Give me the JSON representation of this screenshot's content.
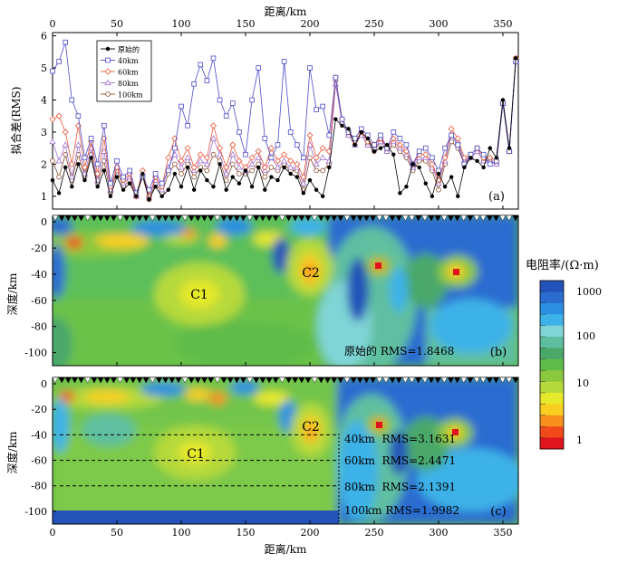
{
  "chart_data": [
    {
      "type": "line",
      "panel": "(a)",
      "xlabel": "距离/km",
      "ylabel": "拟合差(RMS)",
      "xlim": [
        0,
        362
      ],
      "ylim": [
        0.6,
        6.1
      ],
      "xticks": [
        0,
        50,
        100,
        150,
        200,
        250,
        300,
        350
      ],
      "yticks": [
        1,
        2,
        3,
        4,
        5,
        6
      ],
      "legend_position": "top-left",
      "x": [
        0,
        5,
        10,
        15,
        20,
        25,
        30,
        35,
        40,
        45,
        50,
        55,
        60,
        65,
        70,
        75,
        80,
        85,
        90,
        95,
        100,
        105,
        110,
        115,
        120,
        125,
        130,
        135,
        140,
        145,
        150,
        155,
        160,
        165,
        170,
        175,
        180,
        185,
        190,
        195,
        200,
        205,
        210,
        215,
        220,
        225,
        230,
        235,
        240,
        245,
        250,
        255,
        260,
        265,
        270,
        275,
        280,
        285,
        290,
        295,
        300,
        305,
        310,
        315,
        320,
        325,
        330,
        335,
        340,
        345,
        350,
        355,
        360
      ],
      "series": [
        {
          "name": "原始的",
          "color": "#000000",
          "marker": "filled-circle",
          "values": [
            1.5,
            1.1,
            1.9,
            1.3,
            2.0,
            1.5,
            2.2,
            1.3,
            1.8,
            1.0,
            1.6,
            1.2,
            1.4,
            1.0,
            1.7,
            0.9,
            1.3,
            1.0,
            1.2,
            1.7,
            1.3,
            1.9,
            1.2,
            1.8,
            1.5,
            1.3,
            2.0,
            1.2,
            1.6,
            1.4,
            1.8,
            1.3,
            1.9,
            1.2,
            1.6,
            1.5,
            1.9,
            1.7,
            1.6,
            1.1,
            1.5,
            1.2,
            1.0,
            1.9,
            3.4,
            3.2,
            3.1,
            2.6,
            3.0,
            2.8,
            2.4,
            2.5,
            2.6,
            2.3,
            1.1,
            1.3,
            2.0,
            1.9,
            1.4,
            1.0,
            1.7,
            1.3,
            1.6,
            1.0,
            1.9,
            2.2,
            2.1,
            1.9,
            2.5,
            2.2,
            4.0,
            2.5,
            5.3
          ]
        },
        {
          "name": "40km",
          "color": "#4b4bc8",
          "marker": "open-square",
          "values": [
            4.9,
            5.2,
            5.8,
            4.0,
            3.5,
            2.2,
            2.8,
            2.0,
            3.2,
            1.4,
            2.1,
            1.6,
            1.8,
            1.1,
            1.6,
            1.2,
            1.7,
            1.4,
            1.8,
            2.5,
            3.8,
            3.2,
            4.5,
            5.1,
            4.6,
            5.3,
            4.0,
            3.5,
            3.9,
            3.0,
            2.3,
            4.0,
            5.0,
            2.8,
            2.2,
            2.6,
            5.2,
            3.0,
            2.6,
            2.2,
            5.0,
            3.7,
            3.8,
            2.9,
            4.7,
            3.4,
            3.0,
            2.8,
            3.1,
            2.9,
            2.6,
            2.9,
            2.5,
            3.0,
            2.8,
            2.6,
            2.0,
            2.4,
            2.5,
            2.2,
            1.8,
            2.5,
            2.9,
            2.6,
            2.0,
            2.3,
            2.5,
            2.3,
            2.0,
            2.1,
            3.9,
            2.4,
            5.2
          ]
        },
        {
          "name": "60km",
          "color": "#e8573a",
          "marker": "open-diamond",
          "values": [
            3.4,
            3.5,
            3.0,
            2.0,
            3.2,
            1.9,
            2.7,
            1.7,
            2.8,
            1.3,
            1.9,
            1.5,
            1.7,
            1.0,
            1.8,
            1.0,
            1.6,
            1.3,
            2.2,
            2.8,
            2.1,
            2.5,
            1.9,
            2.3,
            2.2,
            3.2,
            2.5,
            1.9,
            2.6,
            2.1,
            1.9,
            2.2,
            2.4,
            1.9,
            2.5,
            2.1,
            2.3,
            2.1,
            2.0,
            1.6,
            2.9,
            2.2,
            2.5,
            2.4,
            4.7,
            3.4,
            3.0,
            2.7,
            3.0,
            2.7,
            2.6,
            2.8,
            2.5,
            2.8,
            2.6,
            2.4,
            2.0,
            2.3,
            2.3,
            2.0,
            1.5,
            2.2,
            3.1,
            2.8,
            2.2,
            2.3,
            2.5,
            2.2,
            2.2,
            2.1,
            3.9,
            2.4,
            5.3
          ]
        },
        {
          "name": "80km",
          "color": "#a070d0",
          "marker": "open-triangle",
          "values": [
            2.7,
            2.1,
            2.6,
            1.6,
            2.6,
            1.7,
            2.5,
            1.5,
            2.4,
            1.2,
            1.9,
            1.4,
            1.6,
            1.0,
            1.7,
            1.0,
            1.5,
            1.2,
            1.9,
            2.3,
            1.9,
            2.2,
            1.8,
            2.1,
            2.0,
            2.8,
            2.3,
            1.7,
            2.3,
            1.9,
            1.8,
            2.0,
            2.2,
            1.8,
            2.2,
            1.9,
            2.1,
            1.9,
            1.9,
            1.4,
            2.6,
            2.0,
            2.2,
            2.1,
            4.5,
            3.3,
            2.9,
            2.6,
            2.9,
            2.6,
            2.5,
            2.7,
            2.4,
            2.7,
            2.5,
            2.3,
            1.9,
            2.2,
            2.2,
            1.9,
            1.4,
            2.1,
            2.9,
            2.7,
            2.1,
            2.2,
            2.4,
            2.1,
            2.1,
            2.0,
            3.9,
            2.4,
            5.2
          ]
        },
        {
          "name": "100km",
          "color": "#8a4a2a",
          "marker": "open-circle",
          "values": [
            2.1,
            1.6,
            2.3,
            1.5,
            2.3,
            1.6,
            2.3,
            1.4,
            2.1,
            1.1,
            1.8,
            1.3,
            1.5,
            1.0,
            1.6,
            0.9,
            1.4,
            1.1,
            1.7,
            2.0,
            1.7,
            2.0,
            1.6,
            1.9,
            1.8,
            2.3,
            2.1,
            1.5,
            2.0,
            1.7,
            1.7,
            1.8,
            2.0,
            1.6,
            1.9,
            1.8,
            2.0,
            1.8,
            1.8,
            1.2,
            2.2,
            1.8,
            1.8,
            2.0,
            4.6,
            3.3,
            2.9,
            2.6,
            2.9,
            2.6,
            2.4,
            2.7,
            2.4,
            2.6,
            2.4,
            2.2,
            1.8,
            2.1,
            2.1,
            1.8,
            1.2,
            2.0,
            2.7,
            2.5,
            2.0,
            2.2,
            2.4,
            2.1,
            2.1,
            2.0,
            3.9,
            2.4,
            5.3
          ]
        }
      ]
    },
    {
      "type": "heatmap",
      "panel": "(b)",
      "ylabel": "深度/km",
      "xlim": [
        0,
        362
      ],
      "ylim": [
        -110,
        5
      ],
      "yticks": [
        0,
        -20,
        -40,
        -60,
        -80,
        -100
      ],
      "xticks": [
        0,
        50,
        100,
        150,
        200,
        250,
        300,
        350
      ],
      "annotations": [
        "C1",
        "C2"
      ],
      "rms_text": "原始的 RMS=1.8468"
    },
    {
      "type": "heatmap",
      "panel": "(c)",
      "xlabel": "距离/km",
      "ylabel": "深度/km",
      "xlim": [
        0,
        362
      ],
      "ylim": [
        -110,
        5
      ],
      "yticks": [
        0,
        -20,
        -40,
        -60,
        -80,
        -100
      ],
      "xticks": [
        0,
        50,
        100,
        150,
        200,
        250,
        300,
        350
      ],
      "annotations": [
        "C1",
        "C2"
      ],
      "depth_lines": [
        -40,
        -60,
        -80,
        -100
      ],
      "rms_texts": [
        "40km  RMS=3.1631",
        "60km  RMS=2.4471",
        "80km  RMS=2.1391",
        "100km RMS=1.9982"
      ]
    }
  ],
  "colorbar": {
    "title": "电阻率/(Ω·m)",
    "labels": [
      "1000",
      "100",
      "10",
      "1"
    ],
    "colors": [
      "#e0141c",
      "#f04a1a",
      "#f7901c",
      "#f8cf20",
      "#e6e82a",
      "#b6d93a",
      "#8cc83e",
      "#5ebc48",
      "#4aa86a",
      "#5ebfa0",
      "#7fd4d6",
      "#3cb2e8",
      "#2a8fe0",
      "#2a6cd0",
      "#2452b8"
    ]
  },
  "stations": {
    "b_count": 72,
    "c_count": 72
  }
}
